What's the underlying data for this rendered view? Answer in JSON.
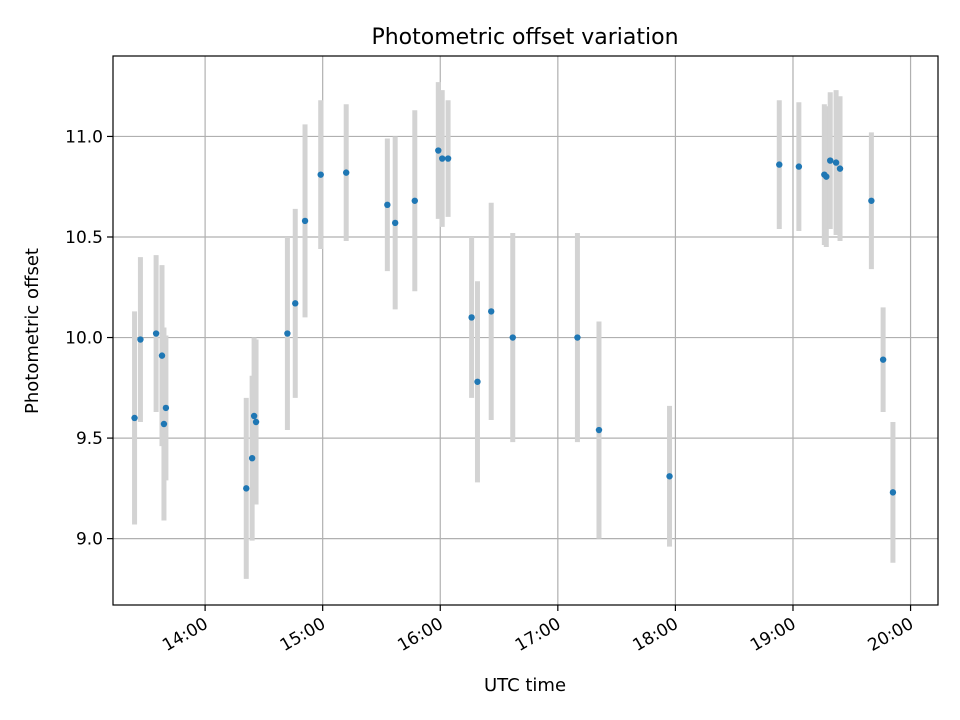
{
  "chart_data": {
    "type": "scatter",
    "title": "Photometric offset variation",
    "xlabel": "UTC time",
    "ylabel": "Photometric offset",
    "grid": true,
    "legend": "none",
    "xlim": [
      "13:13",
      "20:14"
    ],
    "ylim": [
      8.67,
      11.4
    ],
    "x_ticks": [
      "14:00",
      "15:00",
      "16:00",
      "17:00",
      "18:00",
      "19:00",
      "20:00"
    ],
    "y_ticks": [
      "9.0",
      "9.5",
      "10.0",
      "10.5",
      "11.0"
    ],
    "colors": {
      "point": "#1f77b4",
      "errorbar": "#d3d3d3",
      "grid": "#b0b0b0"
    },
    "points": [
      {
        "x": "13:24",
        "y": 9.6,
        "yerr": 0.53
      },
      {
        "x": "13:27",
        "y": 9.99,
        "yerr": 0.41
      },
      {
        "x": "13:35",
        "y": 10.02,
        "yerr": 0.39
      },
      {
        "x": "13:38",
        "y": 9.91,
        "yerr": 0.45
      },
      {
        "x": "13:39",
        "y": 9.57,
        "yerr": 0.48
      },
      {
        "x": "13:40",
        "y": 9.65,
        "yerr": 0.36
      },
      {
        "x": "14:21",
        "y": 9.25,
        "yerr": 0.45
      },
      {
        "x": "14:24",
        "y": 9.4,
        "yerr": 0.41
      },
      {
        "x": "14:25",
        "y": 9.61,
        "yerr": 0.39
      },
      {
        "x": "14:26",
        "y": 9.58,
        "yerr": 0.41
      },
      {
        "x": "14:42",
        "y": 10.02,
        "yerr": 0.48
      },
      {
        "x": "14:46",
        "y": 10.17,
        "yerr": 0.47
      },
      {
        "x": "14:51",
        "y": 10.58,
        "yerr": 0.48
      },
      {
        "x": "14:59",
        "y": 10.81,
        "yerr": 0.37
      },
      {
        "x": "15:12",
        "y": 10.82,
        "yerr": 0.34
      },
      {
        "x": "15:33",
        "y": 10.66,
        "yerr": 0.33
      },
      {
        "x": "15:37",
        "y": 10.57,
        "yerr": 0.43
      },
      {
        "x": "15:47",
        "y": 10.68,
        "yerr": 0.45
      },
      {
        "x": "15:59",
        "y": 10.93,
        "yerr": 0.34
      },
      {
        "x": "16:01",
        "y": 10.89,
        "yerr": 0.34
      },
      {
        "x": "16:04",
        "y": 10.89,
        "yerr": 0.29
      },
      {
        "x": "16:16",
        "y": 10.1,
        "yerr": 0.4
      },
      {
        "x": "16:19",
        "y": 9.78,
        "yerr": 0.5
      },
      {
        "x": "16:26",
        "y": 10.13,
        "yerr": 0.54
      },
      {
        "x": "16:37",
        "y": 10.0,
        "yerr": 0.52
      },
      {
        "x": "17:10",
        "y": 10.0,
        "yerr": 0.52
      },
      {
        "x": "17:21",
        "y": 9.54,
        "yerr": 0.54
      },
      {
        "x": "17:57",
        "y": 9.31,
        "yerr": 0.35
      },
      {
        "x": "18:53",
        "y": 10.86,
        "yerr": 0.32
      },
      {
        "x": "19:03",
        "y": 10.85,
        "yerr": 0.32
      },
      {
        "x": "19:16",
        "y": 10.81,
        "yerr": 0.35
      },
      {
        "x": "19:17",
        "y": 10.8,
        "yerr": 0.35
      },
      {
        "x": "19:19",
        "y": 10.88,
        "yerr": 0.34
      },
      {
        "x": "19:22",
        "y": 10.87,
        "yerr": 0.36
      },
      {
        "x": "19:24",
        "y": 10.84,
        "yerr": 0.36
      },
      {
        "x": "19:40",
        "y": 10.68,
        "yerr": 0.34
      },
      {
        "x": "19:46",
        "y": 9.89,
        "yerr": 0.26
      },
      {
        "x": "19:51",
        "y": 9.23,
        "yerr": 0.35
      }
    ]
  }
}
